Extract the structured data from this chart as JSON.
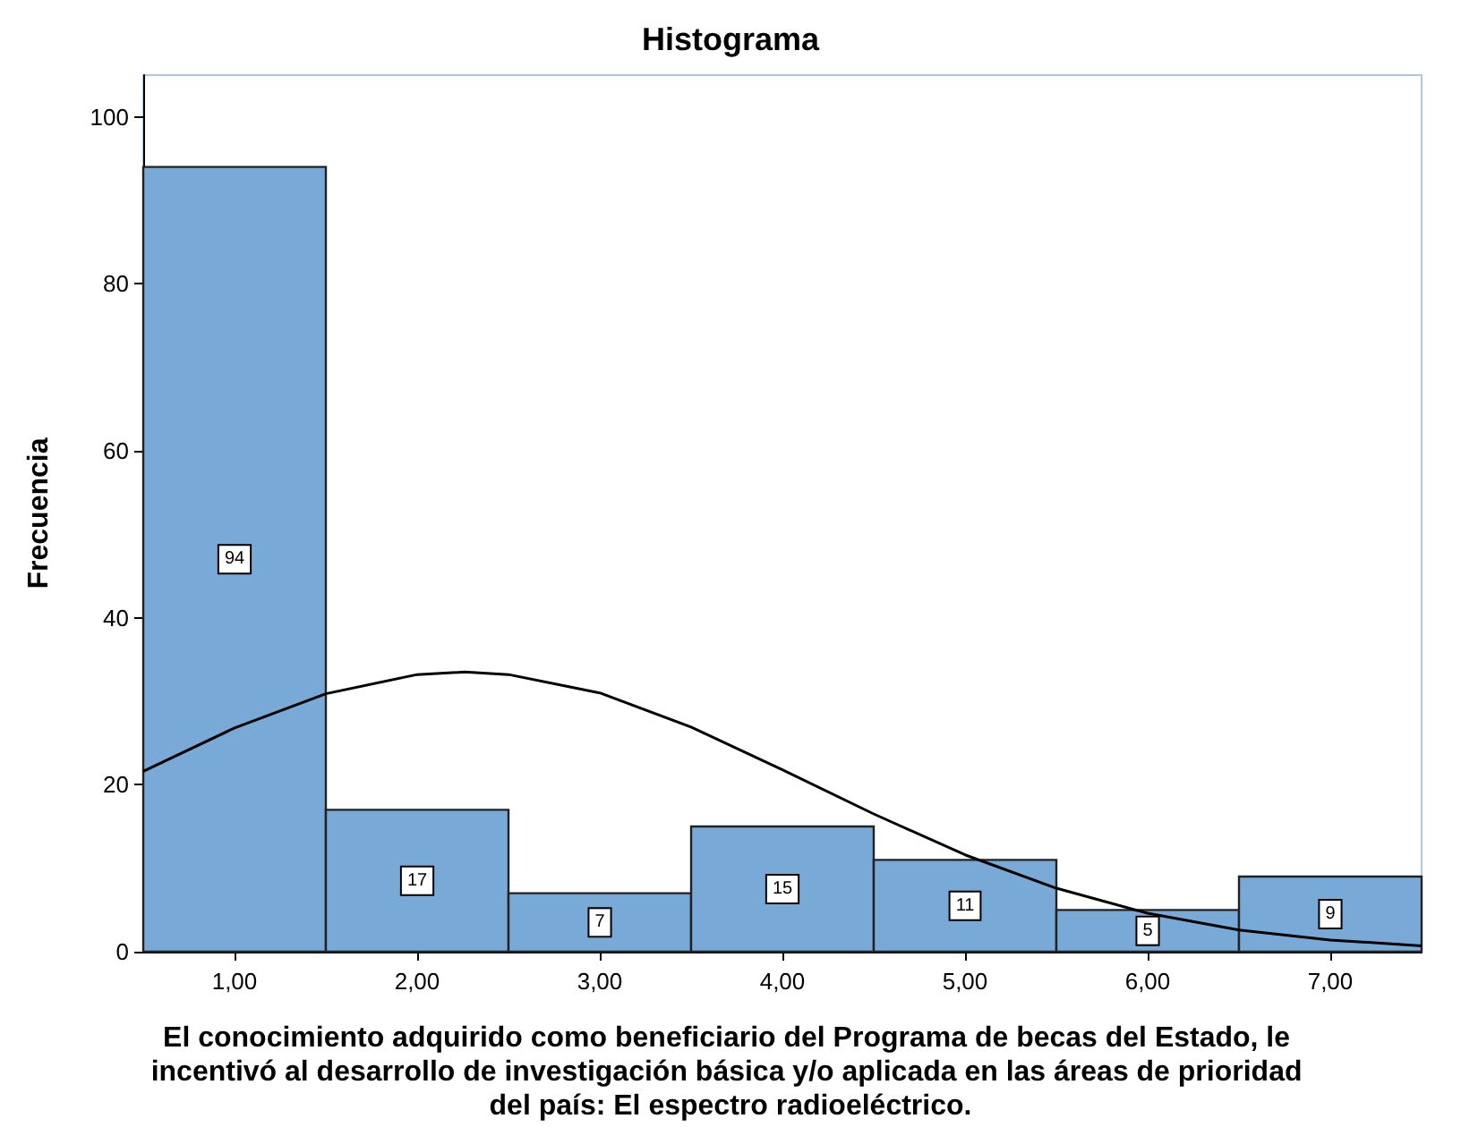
{
  "chart_data": {
    "type": "histogram",
    "title": "Histograma",
    "xlabel": "El conocimiento adquirido como beneficiario del Programa de becas del Estado, le incentivó al desarrollo de investigación básica y/o aplicada en las áreas de prioridad del país: El espectro radioeléctrico.",
    "ylabel": "Frecuencia",
    "bins": [
      0.5,
      1.5,
      2.5,
      3.5,
      4.5,
      5.5,
      6.5,
      7.5
    ],
    "values": [
      94,
      17,
      7,
      15,
      11,
      5,
      9
    ],
    "color": "#79a9d6",
    "value_labels": [
      "94",
      "17",
      "7",
      "15",
      "11",
      "5",
      "9"
    ],
    "series": [
      {
        "type": "line",
        "color": "#000000",
        "x": [
          0.5,
          1.0,
          1.5,
          2.0,
          2.26,
          2.5,
          3.0,
          3.5,
          4.0,
          4.5,
          5.0,
          5.5,
          6.0,
          6.5,
          7.0,
          7.5
        ],
        "values": [
          21.6,
          26.8,
          30.9,
          33.2,
          33.5,
          33.2,
          31.0,
          26.9,
          21.8,
          16.5,
          11.6,
          7.6,
          4.6,
          2.6,
          1.4,
          0.7
        ]
      }
    ],
    "xlim": [
      0.5,
      7.5
    ],
    "xticks": [
      {
        "value": 1,
        "label": "1,00"
      },
      {
        "value": 2,
        "label": "2,00"
      },
      {
        "value": 3,
        "label": "3,00"
      },
      {
        "value": 4,
        "label": "4,00"
      },
      {
        "value": 5,
        "label": "5,00"
      },
      {
        "value": 6,
        "label": "6,00"
      },
      {
        "value": 7,
        "label": "7,00"
      }
    ],
    "ylim": [
      0,
      105
    ],
    "yticks": [
      0,
      20,
      40,
      60,
      80,
      100
    ],
    "grid": false,
    "marker": "none",
    "line_style": "solid"
  }
}
